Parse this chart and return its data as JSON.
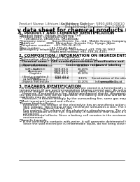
{
  "title": "Safety data sheet for chemical products (SDS)",
  "header_left": "Product Name: Lithium Ion Battery Cell",
  "header_right_line1": "Substance Number: 5890-689-00610",
  "header_right_line2": "Established / Revision: Dec.1.2010",
  "section1_title": "1. PRODUCT AND COMPANY IDENTIFICATION",
  "section1_lines": [
    "・Product name: Lithium Ion Battery Cell",
    "・Product code: Cylindrical type cell",
    "     (UR18650U, UR18650L, UR18650A)",
    "・Company name:      Sanyo Electric Co., Ltd.  Mobile Energy Company",
    "・Address:            2001  Kamionkan, Sumoto City, Hyogo, Japan",
    "・Telephone number:   +81-799-26-4111",
    "・Fax number:         +81-799-26-4125",
    "・Emergency telephone number (Weekdays) +81-799-26-3662",
    "                               (Night and holiday) +81-799-26-4101"
  ],
  "section2_title": "2. COMPOSITION / INFORMATION ON INGREDIENTS",
  "section2_sub1": "・Substance or preparation: Preparation",
  "section2_sub2": "・Information about the chemical nature of product:",
  "table_headers": [
    "Chemical name /\nSeveral names",
    "CAS number",
    "Concentration /\nConcentration range",
    "Classification and\nhazard labeling"
  ],
  "table_rows": [
    [
      "Lithium oxide tentative\n(LiMn-CoNiO2)",
      "-",
      "30-60%",
      "-"
    ],
    [
      "Iron",
      "7439-89-6",
      "10-20%",
      "-"
    ],
    [
      "Aluminum",
      "7429-90-5",
      "2-8%",
      "-"
    ],
    [
      "Graphite\n(Kind-a graphite-I)\n(A-Mix graphite-I)",
      "7782-42-5\n7782-44-2",
      "10-20%",
      "-"
    ],
    [
      "Copper",
      "7440-50-8",
      "3-15%",
      "Sensitization of the skin\ngroup No.2"
    ],
    [
      "Organic electrolyte",
      "-",
      "10-20%",
      "Inflammable liquid"
    ]
  ],
  "section3_title": "3. HAZARDS IDENTIFICATION",
  "section3_para1": "For this battery cell, chemical materials are stored in a hermetically sealed metal case, designed to withstand\ntemperatures of use and transportation (during normal use). As a result, during normal use, there is no\nphysical danger of ignition or explosion and there is no danger of hazardous materials leakage.\n   However, if exposed to a fire, added mechanical shocks, decomposed, when electric without dry measure,\nthe gas release vent will be operated. The battery cell case will be breached (if fire-patterms, hazardous\nmaterials may be released.\n   Moreover, if heated strongly by the surrounding fire, some gas may be emitted.",
  "section3_hazard_header": "・Most important hazard and effects:",
  "section3_hazard_lines": [
    "Human health effects:",
    "   Inhalation: The release of the electrolyte has an anesthesia action and stimulates in respiratory tract.",
    "   Skin contact: The release of the electrolyte stimulates a skin. The electrolyte skin contact causes a",
    "   sore and stimulation on the skin.",
    "   Eye contact: The release of the electrolyte stimulates eyes. The electrolyte eye contact causes a sore",
    "   and stimulation on the eye. Especially, a substance that causes a strong inflammation of the eye is",
    "   contained.",
    "   Environmental effects: Since a battery cell remains in the environment, do not throw out it into the",
    "   environment."
  ],
  "section3_specific_header": "・Specific hazards:",
  "section3_specific_lines": [
    "   If the electrolyte contacts with water, it will generate detrimental hydrogen fluoride.",
    "   Since the said electrolyte is inflammable liquid, do not bring close to fire."
  ],
  "bg_color": "#ffffff",
  "gray_color": "#888888",
  "header_fontsize": 3.5,
  "title_fontsize": 5.5,
  "section_fontsize": 4.0,
  "body_fontsize": 3.2,
  "table_header_fontsize": 3.0,
  "table_body_fontsize": 3.0
}
